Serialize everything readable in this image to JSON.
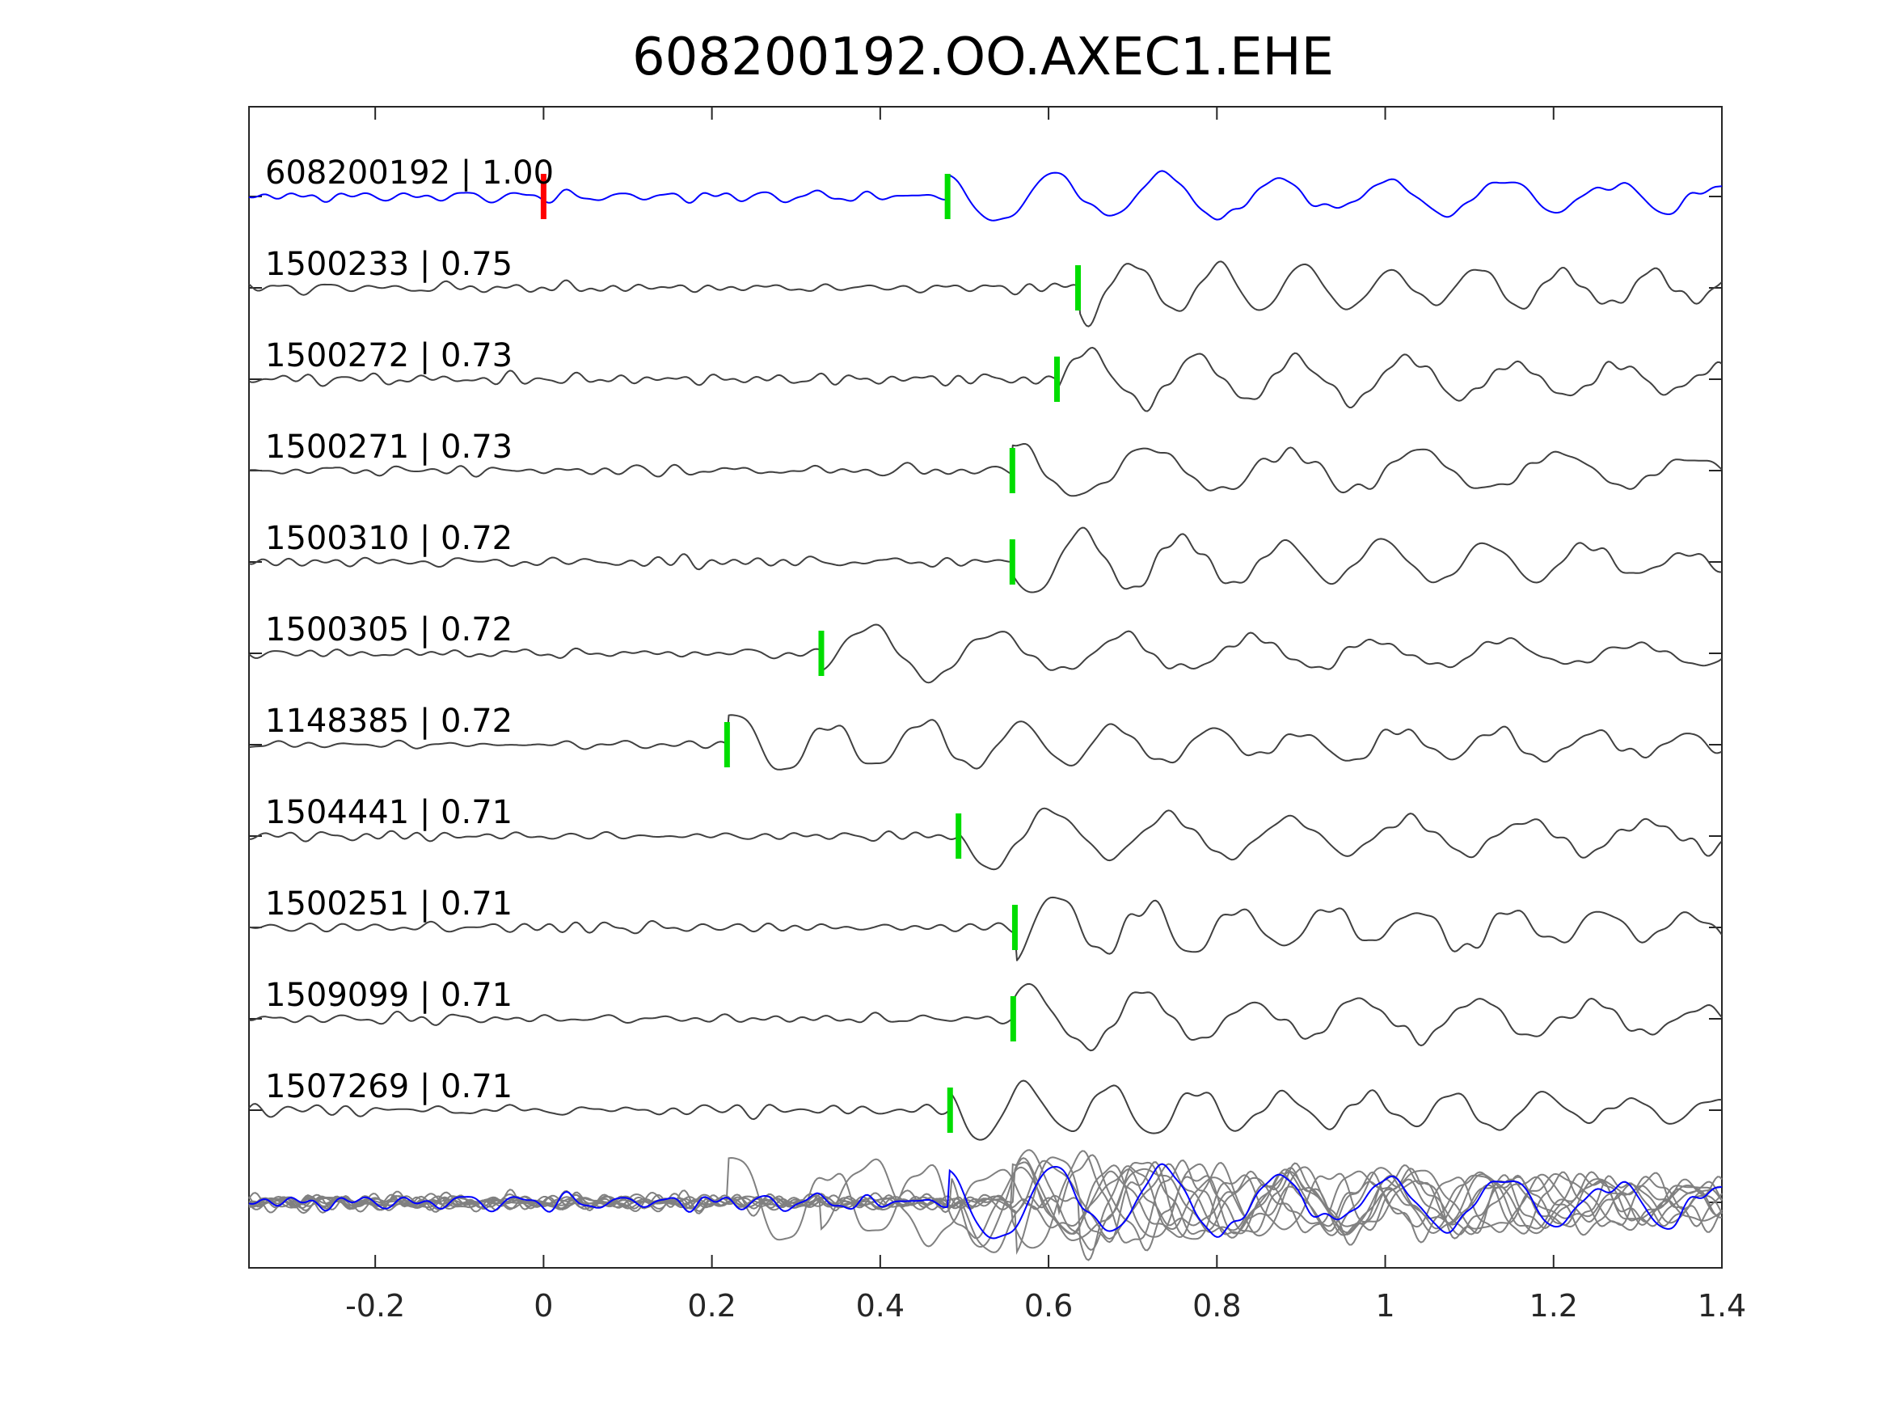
{
  "chart_data": {
    "type": "line",
    "title": "608200192.OO.AXEC1.EHE",
    "xlabel": "",
    "ylabel": "",
    "xlim": [
      -0.35,
      1.4
    ],
    "xticks": [
      -0.2,
      0,
      0.2,
      0.4,
      0.6,
      0.8,
      1,
      1.2,
      1.4
    ],
    "xtick_labels": [
      "-0.2",
      "0",
      "0.2",
      "0.4",
      "0.6",
      "0.8",
      "1",
      "1.2",
      "1.4"
    ],
    "grid": false,
    "legend": false,
    "colors": {
      "template": "#0000ff",
      "trace": "#404040",
      "stack": "#808080",
      "reference_pick": "#ff0000",
      "pick": "#00dd00"
    },
    "reference_pick_time": 0.0,
    "traces": [
      {
        "label": "608200192 | 1.00",
        "pick": 0.48,
        "template": true
      },
      {
        "label": "1500233 | 0.75",
        "pick": 0.635
      },
      {
        "label": "1500272 | 0.73",
        "pick": 0.61
      },
      {
        "label": "1500271 | 0.73",
        "pick": 0.557
      },
      {
        "label": "1500310 | 0.72",
        "pick": 0.557
      },
      {
        "label": "1500305 | 0.72",
        "pick": 0.33
      },
      {
        "label": "1148385 | 0.72",
        "pick": 0.218
      },
      {
        "label": "1504441 | 0.71",
        "pick": 0.493
      },
      {
        "label": "1500251 | 0.71",
        "pick": 0.56
      },
      {
        "label": "1509099 | 0.71",
        "pick": 0.558
      },
      {
        "label": "1507269 | 0.71",
        "pick": 0.483
      }
    ]
  }
}
